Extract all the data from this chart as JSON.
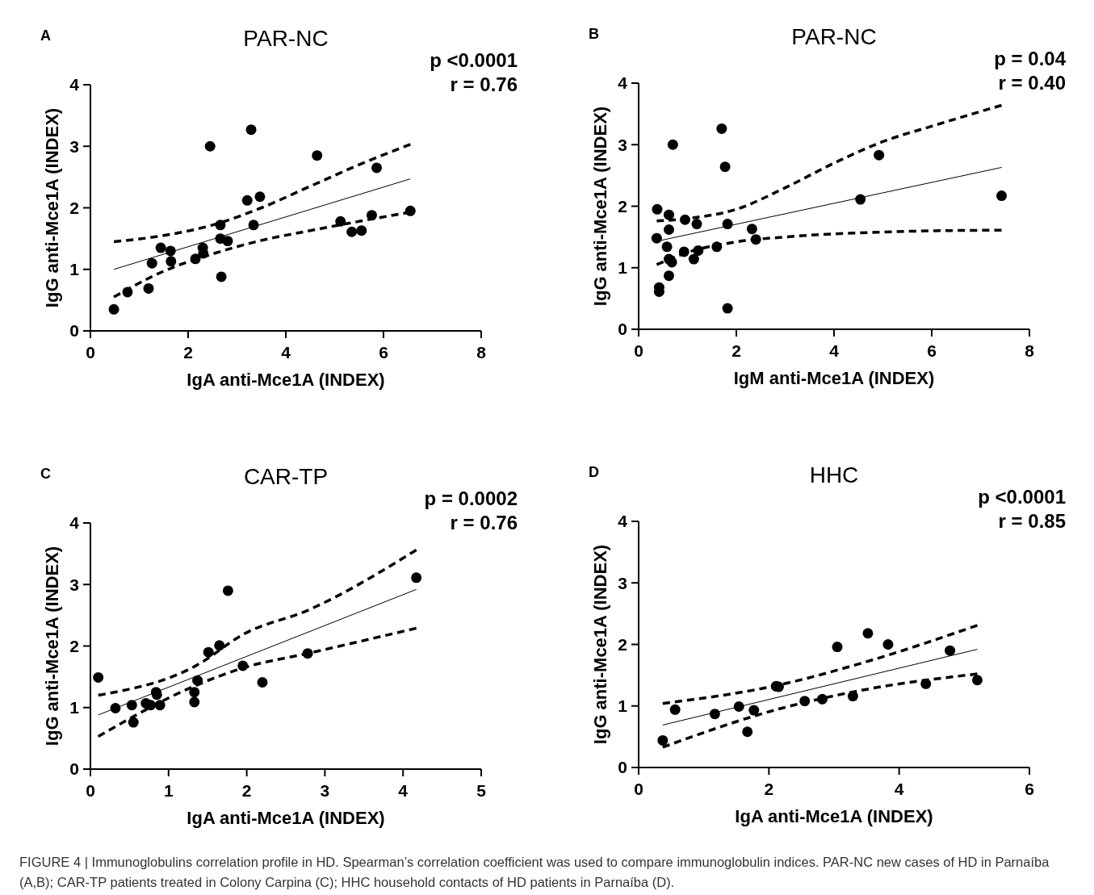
{
  "chart_data": [
    {
      "type": "scatter",
      "title": "PAR-NC",
      "subtitle": "A",
      "xlabel": "IgA anti-Mce1A (INDEX)",
      "ylabel": "IgG anti-Mce1A  (INDEX)",
      "annotations": [
        "p <0.0001",
        "r = 0.76"
      ],
      "xlim": [
        0,
        8
      ],
      "xticks": [
        0,
        2,
        4,
        6,
        8
      ],
      "ylim": [
        0,
        4
      ],
      "yticks": [
        0,
        1,
        2,
        3,
        4
      ],
      "series": [
        {
          "type": "scatter",
          "marker": "circle",
          "color": "#000000",
          "x": [
            0.48,
            0.76,
            1.19,
            1.26,
            1.44,
            1.64,
            1.65,
            2.15,
            2.3,
            2.31,
            2.45,
            2.66,
            2.66,
            2.68,
            2.81,
            3.21,
            3.29,
            3.34,
            3.47,
            4.64,
            5.12,
            5.35,
            5.55,
            5.76,
            5.86,
            6.55
          ],
          "values": [
            0.35,
            0.63,
            0.69,
            1.1,
            1.35,
            1.3,
            1.13,
            1.17,
            1.35,
            1.26,
            3.0,
            1.72,
            1.5,
            0.88,
            1.46,
            2.12,
            3.27,
            1.72,
            2.18,
            2.85,
            1.78,
            1.61,
            1.63,
            1.88,
            2.65,
            1.95
          ]
        },
        {
          "type": "line",
          "color": "#000000",
          "line_style": "solid",
          "x": [
            0.48,
            6.55
          ],
          "values": [
            1.0,
            2.47
          ]
        },
        {
          "type": "line",
          "color": "#000000",
          "line_style": "dashed",
          "x": [
            0.48,
            1.5,
            2.5,
            3.5,
            4.5,
            5.5,
            6.55
          ],
          "values": [
            1.45,
            1.55,
            1.72,
            2.0,
            2.35,
            2.7,
            3.03
          ]
        },
        {
          "type": "line",
          "color": "#000000",
          "line_style": "dashed",
          "x": [
            0.48,
            1.5,
            2.5,
            3.5,
            4.5,
            5.5,
            6.55
          ],
          "values": [
            0.55,
            0.97,
            1.25,
            1.47,
            1.63,
            1.78,
            1.93
          ]
        }
      ]
    },
    {
      "type": "scatter",
      "title": "PAR-NC",
      "subtitle": "B",
      "xlabel": "IgM anti-Mce1A (INDEX)",
      "ylabel": "IgG anti-Mce1A  (INDEX)",
      "annotations": [
        "p = 0.04",
        "r = 0.40"
      ],
      "xlim": [
        0,
        8
      ],
      "xticks": [
        0,
        2,
        4,
        6,
        8
      ],
      "ylim": [
        0,
        4
      ],
      "yticks": [
        0,
        1,
        2,
        3,
        4
      ],
      "series": [
        {
          "type": "scatter",
          "marker": "circle",
          "color": "#000000",
          "x": [
            0.38,
            0.62,
            0.7,
            0.95,
            1.19,
            1.7,
            1.77,
            1.82,
            2.32,
            2.4,
            4.54,
            4.92,
            7.43,
            0.37,
            0.62,
            0.58,
            0.62,
            0.68,
            0.62,
            0.42,
            0.42,
            0.93,
            1.13,
            1.22,
            1.6,
            1.82
          ],
          "values": [
            1.95,
            1.86,
            3.0,
            1.78,
            1.71,
            3.26,
            2.64,
            1.71,
            1.63,
            1.46,
            2.11,
            2.83,
            2.17,
            1.48,
            1.62,
            1.34,
            1.14,
            1.09,
            0.87,
            0.68,
            0.61,
            1.26,
            1.14,
            1.28,
            1.34,
            0.34
          ]
        },
        {
          "type": "line",
          "color": "#000000",
          "line_style": "solid",
          "x": [
            0.37,
            7.43
          ],
          "values": [
            1.43,
            2.63
          ]
        },
        {
          "type": "line",
          "color": "#000000",
          "line_style": "dashed",
          "x": [
            0.37,
            1,
            2,
            3,
            4,
            5,
            6,
            7.43
          ],
          "values": [
            1.76,
            1.8,
            1.95,
            2.3,
            2.7,
            3.05,
            3.3,
            3.64
          ]
        },
        {
          "type": "line",
          "color": "#000000",
          "line_style": "dashed",
          "x": [
            0.37,
            1,
            2,
            3,
            4,
            5,
            6,
            7.43
          ],
          "values": [
            1.05,
            1.25,
            1.42,
            1.5,
            1.55,
            1.58,
            1.6,
            1.61
          ]
        }
      ]
    },
    {
      "type": "scatter",
      "title": "CAR-TP",
      "subtitle": "C",
      "xlabel": "IgA anti-Mce1A (INDEX)",
      "ylabel": "IgG anti-Mce1A  (INDEX)",
      "annotations": [
        "p = 0.0002",
        "r = 0.76"
      ],
      "xlim": [
        0,
        5
      ],
      "xticks": [
        0,
        1,
        2,
        3,
        4,
        5
      ],
      "ylim": [
        0,
        4
      ],
      "yticks": [
        0,
        1,
        2,
        3,
        4
      ],
      "series": [
        {
          "type": "scatter",
          "marker": "circle",
          "color": "#000000",
          "x": [
            0.1,
            0.32,
            0.53,
            0.55,
            0.71,
            0.77,
            0.84,
            0.85,
            0.89,
            1.33,
            1.33,
            1.37,
            1.51,
            1.65,
            1.76,
            1.95,
            2.2,
            2.78,
            4.17
          ],
          "values": [
            1.49,
            0.99,
            1.04,
            0.76,
            1.07,
            1.04,
            1.25,
            1.21,
            1.04,
            1.09,
            1.25,
            1.44,
            1.9,
            2.01,
            2.9,
            1.68,
            1.41,
            1.88,
            3.11
          ]
        },
        {
          "type": "line",
          "color": "#000000",
          "line_style": "solid",
          "x": [
            0.1,
            4.17
          ],
          "values": [
            0.88,
            2.92
          ]
        },
        {
          "type": "line",
          "color": "#000000",
          "line_style": "dashed",
          "x": [
            0.1,
            1.35,
            1.97,
            2.78,
            4.17
          ],
          "values": [
            1.2,
            1.68,
            2.2,
            2.58,
            3.56
          ]
        },
        {
          "type": "line",
          "color": "#000000",
          "line_style": "dashed",
          "x": [
            0.1,
            1.35,
            1.97,
            2.78,
            4.17
          ],
          "values": [
            0.53,
            1.36,
            1.65,
            1.88,
            2.29
          ]
        }
      ]
    },
    {
      "type": "scatter",
      "title": "HHC",
      "subtitle": "D",
      "xlabel": "IgA anti-Mce1A (INDEX)",
      "ylabel": "IgG anti-Mce1A  (INDEX)",
      "annotations": [
        "p <0.0001",
        "r = 0.85"
      ],
      "xlim": [
        0,
        6
      ],
      "xticks": [
        0,
        2,
        4,
        6
      ],
      "ylim": [
        0,
        4
      ],
      "yticks": [
        0,
        1,
        2,
        3,
        4
      ],
      "series": [
        {
          "type": "scatter",
          "marker": "circle",
          "color": "#000000",
          "x": [
            0.37,
            0.56,
            1.17,
            1.54,
            1.67,
            1.77,
            2.11,
            2.15,
            2.55,
            2.82,
            3.05,
            3.29,
            3.52,
            3.83,
            4.41,
            4.78,
            5.2
          ],
          "values": [
            0.44,
            0.94,
            0.87,
            0.99,
            0.58,
            0.93,
            1.32,
            1.31,
            1.08,
            1.11,
            1.96,
            1.16,
            2.18,
            2.0,
            1.36,
            1.9,
            1.42
          ]
        },
        {
          "type": "line",
          "color": "#000000",
          "line_style": "solid",
          "x": [
            0.37,
            5.2
          ],
          "values": [
            0.69,
            1.92
          ]
        },
        {
          "type": "line",
          "color": "#000000",
          "line_style": "dashed",
          "x": [
            0.37,
            2.15,
            3.5,
            5.2
          ],
          "values": [
            1.04,
            1.34,
            1.72,
            2.31
          ]
        },
        {
          "type": "line",
          "color": "#000000",
          "line_style": "dashed",
          "x": [
            0.37,
            2.15,
            3.5,
            5.2
          ],
          "values": [
            0.33,
            0.95,
            1.27,
            1.52
          ]
        }
      ]
    },
    {
      "type": "other",
      "annotations": [
        "FIGURE 4 | Immunoglobulins correlation profile in HD. Spearman’s correlation coefficient was used to compare immunoglobulin indices. PAR-NC new cases of HD in Parnaíba (A,B); CAR-TP patients treated in Colony Carpina (C); HHC household contacts of HD patients in Parnaíba (D)."
      ]
    }
  ]
}
